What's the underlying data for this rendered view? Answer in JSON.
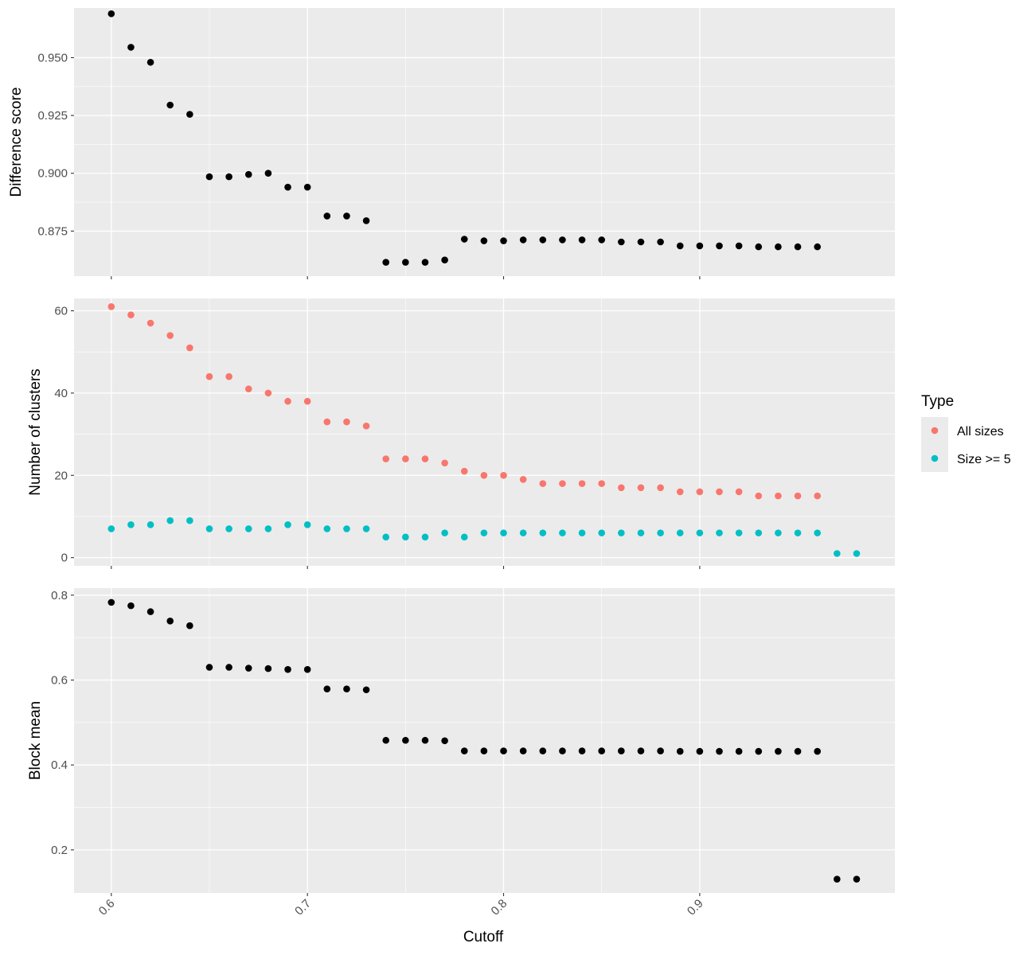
{
  "chart_data": {
    "type": "scatter",
    "x_label": "Cutoff",
    "x_ticks": [
      0.6,
      0.7,
      0.8,
      0.9
    ],
    "xlim": [
      0.581,
      0.9995
    ],
    "colors": {
      "panel_bg": "#ebebeb",
      "grid": "#ffffff",
      "black_point": "#000000",
      "all_sizes": "#f8766d",
      "size_ge_5": "#00bfc4",
      "tick_text": "#4d4d4d"
    },
    "panels": [
      {
        "id": "difference-score",
        "ylabel": "Difference score",
        "ylim": [
          0.8555,
          0.9715
        ],
        "y_ticks": [
          0.875,
          0.9,
          0.925,
          0.95
        ],
        "y_tick_labels": [
          "0.875",
          "0.900",
          "0.925",
          "0.950"
        ],
        "series": [
          {
            "color_key": "black_point",
            "x": [
              0.6,
              0.61,
              0.62,
              0.63,
              0.64,
              0.65,
              0.66,
              0.67,
              0.68,
              0.69,
              0.7,
              0.71,
              0.72,
              0.73,
              0.74,
              0.75,
              0.76,
              0.77,
              0.78,
              0.79,
              0.8,
              0.81,
              0.82,
              0.83,
              0.84,
              0.85,
              0.86,
              0.87,
              0.88,
              0.89,
              0.9,
              0.91,
              0.92,
              0.93,
              0.94,
              0.95,
              0.96
            ],
            "y": [
              0.969,
              0.9545,
              0.948,
              0.9295,
              0.9255,
              0.8985,
              0.8985,
              0.8995,
              0.9,
              0.894,
              0.894,
              0.8815,
              0.8815,
              0.8795,
              0.8615,
              0.8615,
              0.8615,
              0.8625,
              0.8715,
              0.8708,
              0.8708,
              0.8712,
              0.8712,
              0.8712,
              0.8712,
              0.8712,
              0.8703,
              0.8703,
              0.8703,
              0.8686,
              0.8686,
              0.8686,
              0.8686,
              0.8682,
              0.8682,
              0.8682,
              0.8682
            ]
          }
        ]
      },
      {
        "id": "number-of-clusters",
        "ylabel": "Number of clusters",
        "ylim": [
          -2,
          63
        ],
        "y_ticks": [
          0,
          20,
          40,
          60
        ],
        "y_tick_labels": [
          "0",
          "20",
          "40",
          "60"
        ],
        "series": [
          {
            "name": "All sizes",
            "color_key": "all_sizes",
            "x": [
              0.6,
              0.61,
              0.62,
              0.63,
              0.64,
              0.65,
              0.66,
              0.67,
              0.68,
              0.69,
              0.7,
              0.71,
              0.72,
              0.73,
              0.74,
              0.75,
              0.76,
              0.77,
              0.78,
              0.79,
              0.8,
              0.81,
              0.82,
              0.83,
              0.84,
              0.85,
              0.86,
              0.87,
              0.88,
              0.89,
              0.9,
              0.91,
              0.92,
              0.93,
              0.94,
              0.95,
              0.96
            ],
            "y": [
              61,
              59,
              57,
              54,
              51,
              44,
              44,
              41,
              40,
              38,
              38,
              33,
              33,
              32,
              24,
              24,
              24,
              23,
              21,
              20,
              20,
              19,
              18,
              18,
              18,
              18,
              17,
              17,
              17,
              16,
              16,
              16,
              16,
              15,
              15,
              15,
              15
            ]
          },
          {
            "name": "Size >= 5",
            "color_key": "size_ge_5",
            "x": [
              0.6,
              0.61,
              0.62,
              0.63,
              0.64,
              0.65,
              0.66,
              0.67,
              0.68,
              0.69,
              0.7,
              0.71,
              0.72,
              0.73,
              0.74,
              0.75,
              0.76,
              0.77,
              0.78,
              0.79,
              0.8,
              0.81,
              0.82,
              0.83,
              0.84,
              0.85,
              0.86,
              0.87,
              0.88,
              0.89,
              0.9,
              0.91,
              0.92,
              0.93,
              0.94,
              0.95,
              0.96,
              0.97,
              0.98
            ],
            "y": [
              7,
              8,
              8,
              9,
              9,
              7,
              7,
              7,
              7,
              8,
              8,
              7,
              7,
              7,
              5,
              5,
              5,
              6,
              5,
              6,
              6,
              6,
              6,
              6,
              6,
              6,
              6,
              6,
              6,
              6,
              6,
              6,
              6,
              6,
              6,
              6,
              6,
              1,
              1
            ]
          }
        ]
      },
      {
        "id": "block-mean",
        "ylabel": "Block mean",
        "ylim": [
          0.0985,
          0.8165
        ],
        "y_ticks": [
          0.2,
          0.4,
          0.6,
          0.8
        ],
        "y_tick_labels": [
          "0.2",
          "0.4",
          "0.6",
          "0.8"
        ],
        "series": [
          {
            "color_key": "black_point",
            "x": [
              0.6,
              0.61,
              0.62,
              0.63,
              0.64,
              0.65,
              0.66,
              0.67,
              0.68,
              0.69,
              0.7,
              0.71,
              0.72,
              0.73,
              0.74,
              0.75,
              0.76,
              0.77,
              0.78,
              0.79,
              0.8,
              0.81,
              0.82,
              0.83,
              0.84,
              0.85,
              0.86,
              0.87,
              0.88,
              0.89,
              0.9,
              0.91,
              0.92,
              0.93,
              0.94,
              0.95,
              0.96,
              0.97,
              0.98
            ],
            "y": [
              0.783,
              0.775,
              0.761,
              0.739,
              0.728,
              0.63,
              0.63,
              0.628,
              0.627,
              0.625,
              0.625,
              0.579,
              0.579,
              0.577,
              0.458,
              0.458,
              0.458,
              0.457,
              0.433,
              0.433,
              0.433,
              0.433,
              0.433,
              0.433,
              0.433,
              0.433,
              0.433,
              0.433,
              0.433,
              0.432,
              0.432,
              0.432,
              0.432,
              0.432,
              0.432,
              0.432,
              0.432,
              0.131,
              0.131
            ]
          }
        ]
      }
    ],
    "legend": {
      "title": "Type",
      "position": "right",
      "entries": [
        {
          "label": "All sizes",
          "color_key": "all_sizes"
        },
        {
          "label": "Size >= 5",
          "color_key": "size_ge_5"
        }
      ]
    }
  }
}
